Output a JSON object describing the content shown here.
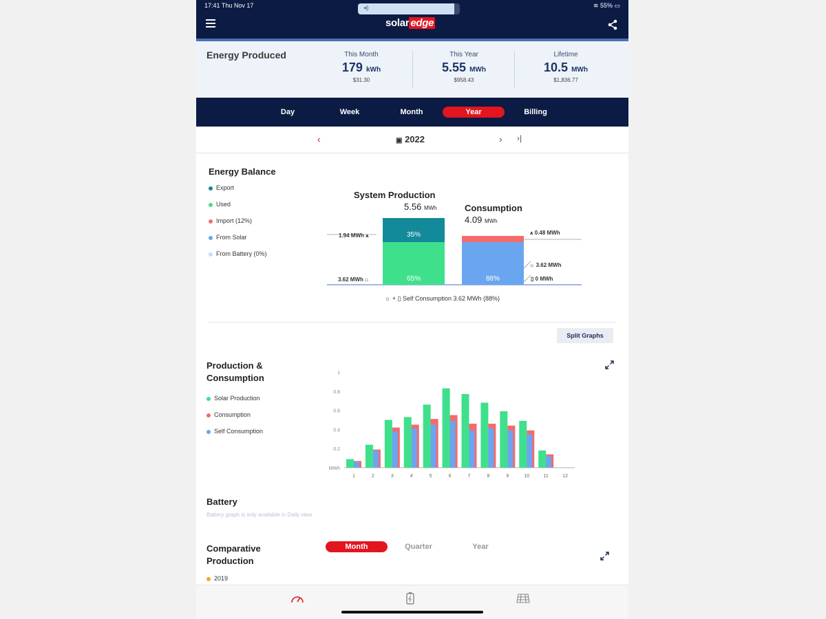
{
  "status_bar": {
    "time": "17:41  Thu Nov 17",
    "battery": "55%"
  },
  "header": {
    "logo_a": "solar",
    "logo_b": "edge"
  },
  "energy_produced": {
    "title": "Energy Produced",
    "stats": [
      {
        "label": "This Month",
        "value": "179",
        "unit": "kWh",
        "money": "$31.30"
      },
      {
        "label": "This Year",
        "value": "5.55",
        "unit": "MWh",
        "money": "$958.43"
      },
      {
        "label": "Lifetime",
        "value": "10.5",
        "unit": "MWh",
        "money": "$1,836.77"
      }
    ]
  },
  "tabs": [
    "Day",
    "Week",
    "Month",
    "Year",
    "Billing"
  ],
  "active_tab": "Year",
  "date_nav": {
    "label": "2022"
  },
  "energy_balance": {
    "title": "Energy Balance",
    "legend": [
      {
        "label": "Export",
        "color": "#138a9a"
      },
      {
        "label": "Used",
        "color": "#3fe08c"
      },
      {
        "label": "Import (12%)",
        "color": "#f46b6b"
      },
      {
        "label": "From Solar",
        "color": "#6aa5f0"
      },
      {
        "label": "From Battery (0%)",
        "color": "#c7dcf6"
      }
    ],
    "production": {
      "title": "System Production",
      "value": "5.56",
      "unit": "MWh",
      "export_pct": "35%",
      "used_pct": "65%",
      "export_label": "1.94 MWh",
      "used_label": "3.62 MWh"
    },
    "consumption": {
      "title": "Consumption",
      "value": "4.09",
      "unit": "MWh",
      "solar_pct": "88%",
      "import_label": "0.48 MWh",
      "solar_label": "3.62 MWh",
      "battery_label": "0 MWh"
    },
    "self_consumption": "Self Consumption 3.62 MWh (88%)"
  },
  "split_graphs_label": "Split Graphs",
  "chart_data": {
    "type": "bar",
    "title": "Production & Consumption",
    "title_line1": "Production &",
    "title_line2": "Consumption",
    "categories": [
      "1",
      "2",
      "3",
      "4",
      "5",
      "6",
      "7",
      "8",
      "9",
      "10",
      "11",
      "12"
    ],
    "ylabel": "MWh",
    "ylim": [
      0,
      1
    ],
    "yticks": [
      "0.2",
      "0.4",
      "0.6",
      "0.8",
      "1"
    ],
    "series": [
      {
        "name": "Solar Production",
        "color": "#3fe08c",
        "values": [
          0.09,
          0.24,
          0.5,
          0.53,
          0.66,
          0.83,
          0.77,
          0.68,
          0.59,
          0.49,
          0.18,
          0
        ]
      },
      {
        "name": "Consumption",
        "color": "#f46b6b",
        "values": [
          0.07,
          0.19,
          0.42,
          0.45,
          0.51,
          0.55,
          0.46,
          0.46,
          0.44,
          0.39,
          0.14,
          0
        ]
      },
      {
        "name": "Self Consumption",
        "color": "#6aa5f0",
        "values": [
          0.06,
          0.18,
          0.38,
          0.41,
          0.45,
          0.49,
          0.39,
          0.41,
          0.39,
          0.35,
          0.12,
          0
        ]
      }
    ]
  },
  "battery": {
    "title": "Battery",
    "note": "Battery graph is only available in Daily view"
  },
  "comparative": {
    "title_line1": "Comparative",
    "title_line2": "Production",
    "tabs": [
      "Month",
      "Quarter",
      "Year"
    ],
    "legend_year": "2019",
    "legend_color": "#f5a623"
  }
}
